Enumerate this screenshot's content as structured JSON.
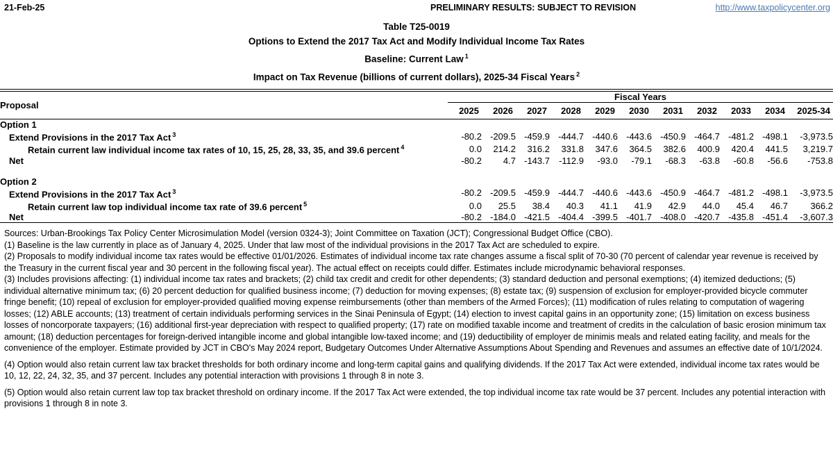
{
  "header": {
    "date": "21-Feb-25",
    "status": "PRELIMINARY RESULTS: SUBJECT TO REVISION",
    "link": "http://www.taxpolicycenter.org",
    "link_color": "#4a7ab2"
  },
  "title": {
    "line1": "Table T25-0019",
    "line2": "Options to Extend the 2017 Tax Act and Modify Individual Income Tax Rates",
    "line3": "Baseline: Current Law",
    "line3_sup": "1",
    "line4": "Impact on Tax Revenue (billions of current dollars), 2025-34 Fiscal Years",
    "line4_sup": "2"
  },
  "table": {
    "proposal_header": "Proposal",
    "group_header": "Fiscal Years",
    "year_columns": [
      "2025",
      "2026",
      "2027",
      "2028",
      "2029",
      "2030",
      "2031",
      "2032",
      "2033",
      "2034",
      "2025-34"
    ],
    "sections": [
      {
        "title": "Option 1",
        "rows": [
          {
            "label": "Extend Provisions in the 2017 Tax Act",
            "sup": "3",
            "indent": 1,
            "values": [
              "-80.2",
              "-209.5",
              "-459.9",
              "-444.7",
              "-440.6",
              "-443.6",
              "-450.9",
              "-464.7",
              "-481.2",
              "-498.1",
              "-3,973.5"
            ]
          },
          {
            "label": "Retain current law individual income tax rates of 10, 15, 25, 28, 33, 35, and 39.6 percent",
            "sup": "4",
            "indent": 2,
            "values": [
              "0.0",
              "214.2",
              "316.2",
              "331.8",
              "347.6",
              "364.5",
              "382.6",
              "400.9",
              "420.4",
              "441.5",
              "3,219.7"
            ]
          },
          {
            "label": "Net",
            "sup": "",
            "indent": 1,
            "values": [
              "-80.2",
              "4.7",
              "-143.7",
              "-112.9",
              "-93.0",
              "-79.1",
              "-68.3",
              "-63.8",
              "-60.8",
              "-56.6",
              "-753.8"
            ]
          }
        ]
      },
      {
        "title": "Option 2",
        "rows": [
          {
            "label": "Extend Provisions in the 2017 Tax Act",
            "sup": "3",
            "indent": 1,
            "values": [
              "-80.2",
              "-209.5",
              "-459.9",
              "-444.7",
              "-440.6",
              "-443.6",
              "-450.9",
              "-464.7",
              "-481.2",
              "-498.1",
              "-3,973.5"
            ]
          },
          {
            "label": "Retain current law top individual income tax rate of 39.6 percent",
            "sup": "5",
            "indent": 2,
            "values": [
              "0.0",
              "25.5",
              "38.4",
              "40.3",
              "41.1",
              "41.9",
              "42.9",
              "44.0",
              "45.4",
              "46.7",
              "366.2"
            ]
          },
          {
            "label": "Net",
            "sup": "",
            "indent": 1,
            "values": [
              "-80.2",
              "-184.0",
              "-421.5",
              "-404.4",
              "-399.5",
              "-401.7",
              "-408.0",
              "-420.7",
              "-435.8",
              "-451.4",
              "-3,607.3"
            ]
          }
        ]
      }
    ]
  },
  "notes": [
    {
      "gap": false,
      "text": "Sources: Urban-Brookings Tax Policy Center Microsimulation Model (version 0324-3); Joint Committee on Taxation (JCT); Congressional Budget Office (CBO)."
    },
    {
      "gap": false,
      "text": "(1) Baseline is the law currently in place as of January 4, 2025. Under that law most of the individual provisions in the 2017 Tax Act are scheduled to expire."
    },
    {
      "gap": false,
      "text": "(2) Proposals to modify individual income tax rates would be effective 01/01/2026. Estimates of individual income tax rate changes assume a fiscal split of 70-30 (70 percent of calendar year revenue is received by the Treasury in the current fiscal year and 30 percent in the following fiscal year). The actual effect on receipts could differ. Estimates include microdynamic behavioral responses."
    },
    {
      "gap": false,
      "text": "(3) Includes provisions affecting: (1) individual income tax rates and brackets; (2) child tax credit and credit for other dependents; (3) standard deduction and personal exemptions; (4) itemized deductions; (5) individual alternative minimum tax; (6) 20 percent deduction for qualified business income; (7) deduction for moving expenses; (8) estate tax; (9) suspension of exclusion for employer-provided bicycle commuter fringe benefit; (10) repeal of exclusion for employer-provided qualified moving expense reimbursements (other than members of the Armed Forces); (11) modification of rules relating to computation of wagering losses; (12) ABLE accounts; (13) treatment of certain individuals performing services in the Sinai Peninsula of Egypt; (14) election to invest capital gains in an opportunity zone; (15) limitation on excess business losses of noncorporate taxpayers; (16) additional first-year depreciation with respect to qualified property; (17) rate on modified taxable income and treatment of credits in the calculation of basic erosion minimum tax amount; (18) deduction percentages for foreign-derived intangible income and global intangible low-taxed income; and (19) deductibility of employer de minimis meals and related eating facility, and meals for the convenience of the employer. Estimate provided by JCT in CBO's May 2024 report, Budgetary Outcomes Under Alternative Assumptions About Spending and Revenues and assumes an effective date of 10/1/2024."
    },
    {
      "gap": true,
      "text": "(4) Option would also retain current law tax bracket thresholds for both ordinary income and long-term capital gains and qualifying dividends. If the 2017 Tax Act were extended, individual income tax rates would be 10, 12, 22, 24, 32, 35, and 37 percent. Includes any potential interaction with provisions 1 through 8 in note 3."
    },
    {
      "gap": true,
      "text": "(5) Option would also retain current law top tax bracket threshold on ordinary income. If the 2017 Tax Act were extended, the top individual income tax rate would be 37 percent. Includes any potential interaction with provisions 1 through 8 in note 3."
    }
  ]
}
